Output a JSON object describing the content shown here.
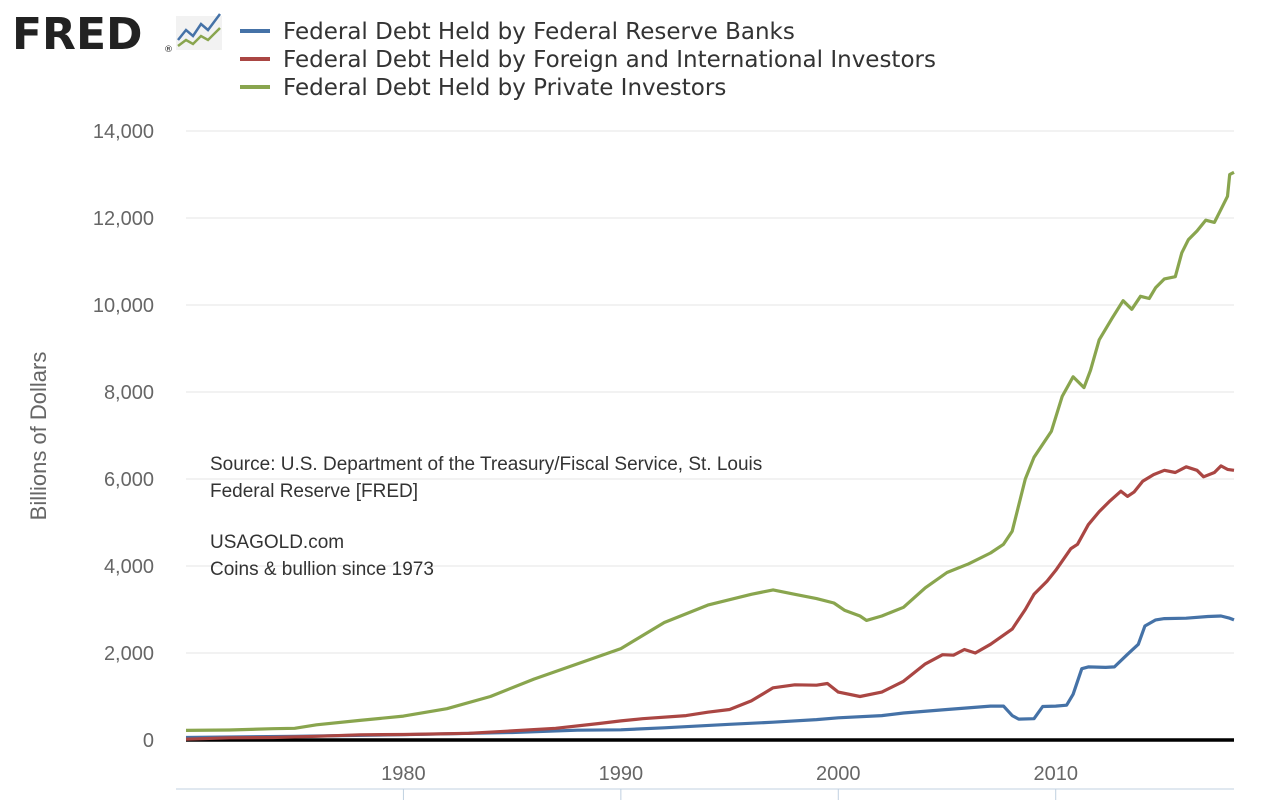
{
  "logo": {
    "text": "FRED",
    "registered": "®"
  },
  "annotation": {
    "source_line1": "Source:  U.S. Department of the Treasury/Fiscal Service, St. Louis",
    "source_line2": "Federal Reserve [FRED]",
    "brand_line1": "USAGOLD.com",
    "brand_line2": "Coins & bullion since 1973"
  },
  "chart_data": {
    "type": "line",
    "title": "",
    "xlabel": "",
    "ylabel": "Billions of Dollars",
    "xlim": [
      1970,
      2018.2
    ],
    "ylim": [
      0,
      14000
    ],
    "x_ticks": [
      "1980",
      "1990",
      "2000",
      "2010"
    ],
    "x_tick_values": [
      1980,
      1990,
      2000,
      2010
    ],
    "y_ticks": [
      "0",
      "2,000",
      "4,000",
      "6,000",
      "8,000",
      "10,000",
      "12,000",
      "14,000"
    ],
    "y_tick_values": [
      0,
      2000,
      4000,
      6000,
      8000,
      10000,
      12000,
      14000
    ],
    "grid": true,
    "legend_position": "top-left",
    "series": [
      {
        "name": "Federal Debt Held by Federal Reserve Banks",
        "color": "#4572a7",
        "points": [
          [
            1970,
            57
          ],
          [
            1975,
            85
          ],
          [
            1980,
            121
          ],
          [
            1985,
            172
          ],
          [
            1988,
            225
          ],
          [
            1990,
            235
          ],
          [
            1992,
            280
          ],
          [
            1995,
            360
          ],
          [
            1997,
            410
          ],
          [
            1999,
            470
          ],
          [
            2000,
            510
          ],
          [
            2002,
            560
          ],
          [
            2003,
            620
          ],
          [
            2005,
            700
          ],
          [
            2007,
            780
          ],
          [
            2007.6,
            780
          ],
          [
            2008,
            560
          ],
          [
            2008.3,
            480
          ],
          [
            2009,
            490
          ],
          [
            2009.4,
            770
          ],
          [
            2010,
            780
          ],
          [
            2010.5,
            800
          ],
          [
            2010.8,
            1050
          ],
          [
            2011.2,
            1640
          ],
          [
            2011.5,
            1680
          ],
          [
            2012.3,
            1670
          ],
          [
            2012.7,
            1680
          ],
          [
            2013.3,
            1970
          ],
          [
            2013.8,
            2200
          ],
          [
            2014.1,
            2620
          ],
          [
            2014.6,
            2760
          ],
          [
            2015,
            2790
          ],
          [
            2016,
            2800
          ],
          [
            2017,
            2840
          ],
          [
            2017.6,
            2850
          ],
          [
            2018,
            2800
          ],
          [
            2018.2,
            2760
          ]
        ]
      },
      {
        "name": "Federal Debt Held by Foreign and International Investors",
        "color": "#aa4643",
        "points": [
          [
            1970,
            18
          ],
          [
            1972,
            50
          ],
          [
            1974,
            58
          ],
          [
            1976,
            85
          ],
          [
            1978,
            120
          ],
          [
            1980,
            127
          ],
          [
            1983,
            155
          ],
          [
            1985,
            210
          ],
          [
            1987,
            270
          ],
          [
            1989,
            380
          ],
          [
            1990,
            440
          ],
          [
            1991,
            490
          ],
          [
            1993,
            560
          ],
          [
            1994,
            640
          ],
          [
            1995,
            700
          ],
          [
            1996,
            900
          ],
          [
            1997,
            1200
          ],
          [
            1998,
            1270
          ],
          [
            1999,
            1260
          ],
          [
            1999.5,
            1300
          ],
          [
            2000,
            1100
          ],
          [
            2001,
            1000
          ],
          [
            2002,
            1100
          ],
          [
            2003,
            1350
          ],
          [
            2004,
            1750
          ],
          [
            2004.8,
            1960
          ],
          [
            2005.3,
            1950
          ],
          [
            2005.8,
            2080
          ],
          [
            2006.3,
            2000
          ],
          [
            2007,
            2200
          ],
          [
            2008,
            2550
          ],
          [
            2008.6,
            3000
          ],
          [
            2009,
            3350
          ],
          [
            2009.6,
            3650
          ],
          [
            2010,
            3900
          ],
          [
            2010.7,
            4400
          ],
          [
            2011,
            4500
          ],
          [
            2011.5,
            4950
          ],
          [
            2012,
            5250
          ],
          [
            2012.5,
            5500
          ],
          [
            2013,
            5720
          ],
          [
            2013.3,
            5600
          ],
          [
            2013.6,
            5700
          ],
          [
            2014,
            5950
          ],
          [
            2014.5,
            6100
          ],
          [
            2015,
            6200
          ],
          [
            2015.5,
            6150
          ],
          [
            2016,
            6280
          ],
          [
            2016.5,
            6200
          ],
          [
            2016.8,
            6050
          ],
          [
            2017.3,
            6150
          ],
          [
            2017.6,
            6300
          ],
          [
            2017.9,
            6220
          ],
          [
            2018.2,
            6200
          ]
        ]
      },
      {
        "name": "Federal Debt Held by Private Investors",
        "color": "#89a54e",
        "points": [
          [
            1970,
            220
          ],
          [
            1972,
            230
          ],
          [
            1974,
            260
          ],
          [
            1975,
            270
          ],
          [
            1976,
            350
          ],
          [
            1978,
            450
          ],
          [
            1980,
            550
          ],
          [
            1982,
            720
          ],
          [
            1984,
            1000
          ],
          [
            1986,
            1400
          ],
          [
            1988,
            1750
          ],
          [
            1990,
            2100
          ],
          [
            1992,
            2700
          ],
          [
            1994,
            3100
          ],
          [
            1996,
            3350
          ],
          [
            1997,
            3450
          ],
          [
            1998,
            3350
          ],
          [
            1999,
            3250
          ],
          [
            1999.8,
            3150
          ],
          [
            2000.3,
            2980
          ],
          [
            2001,
            2850
          ],
          [
            2001.3,
            2750
          ],
          [
            2002,
            2850
          ],
          [
            2003,
            3050
          ],
          [
            2004,
            3500
          ],
          [
            2005,
            3850
          ],
          [
            2006,
            4050
          ],
          [
            2007,
            4300
          ],
          [
            2007.6,
            4500
          ],
          [
            2008,
            4800
          ],
          [
            2008.6,
            6000
          ],
          [
            2009,
            6500
          ],
          [
            2009.8,
            7100
          ],
          [
            2010.3,
            7900
          ],
          [
            2010.8,
            8350
          ],
          [
            2011.3,
            8100
          ],
          [
            2011.6,
            8500
          ],
          [
            2012,
            9200
          ],
          [
            2012.6,
            9700
          ],
          [
            2013.1,
            10100
          ],
          [
            2013.5,
            9900
          ],
          [
            2013.9,
            10200
          ],
          [
            2014.3,
            10150
          ],
          [
            2014.6,
            10400
          ],
          [
            2015,
            10600
          ],
          [
            2015.5,
            10650
          ],
          [
            2015.8,
            11200
          ],
          [
            2016.1,
            11500
          ],
          [
            2016.5,
            11700
          ],
          [
            2016.9,
            11950
          ],
          [
            2017.3,
            11900
          ],
          [
            2017.6,
            12200
          ],
          [
            2017.9,
            12500
          ],
          [
            2018,
            13000
          ],
          [
            2018.2,
            13050
          ]
        ]
      }
    ]
  }
}
